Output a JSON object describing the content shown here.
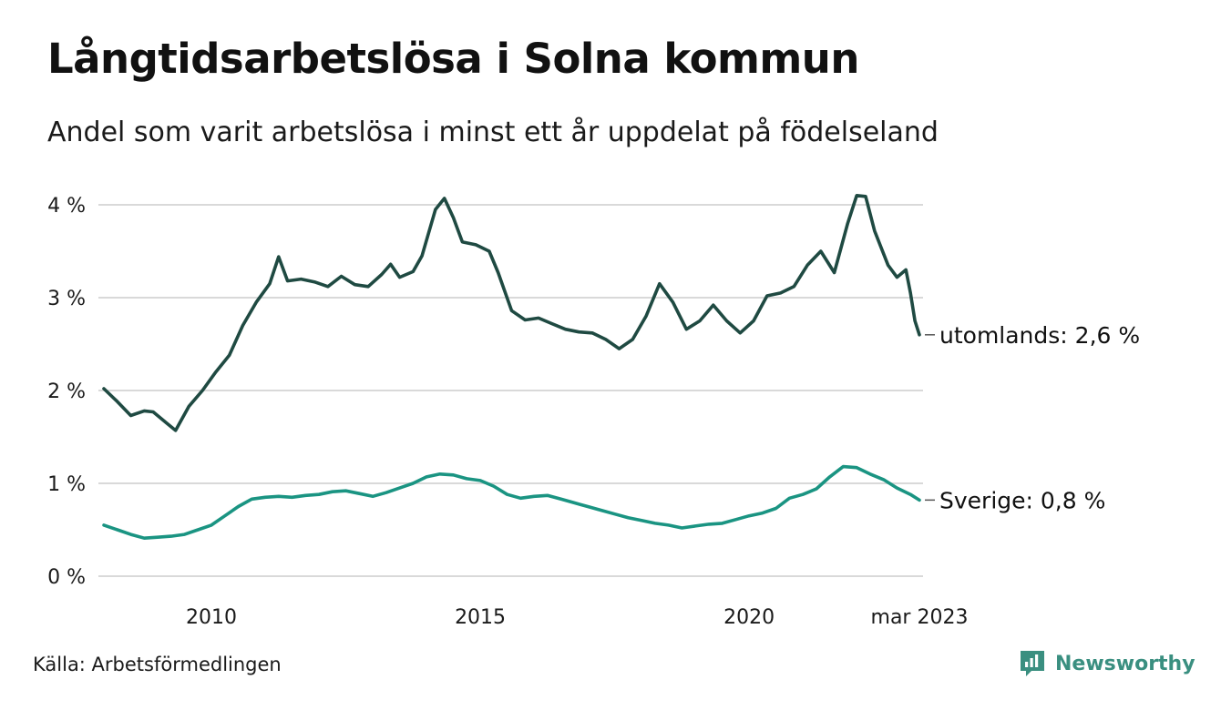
{
  "header": {
    "title": "Långtidsarbetslösa i Solna kommun",
    "subtitle": "Andel som varit arbetslösa i minst ett år uppdelat på födelseland"
  },
  "footer": {
    "source": "Källa: Arbetsförmedlingen",
    "brand": "Newsworthy"
  },
  "colors": {
    "utomlands": "#1f4a42",
    "sverige": "#1a9482",
    "grid": "#d9d9d9",
    "brand": "#3a8f80"
  },
  "chart_data": {
    "type": "line",
    "title": "Långtidsarbetslösa i Solna kommun",
    "subtitle": "Andel som varit arbetslösa i minst ett år uppdelat på födelseland",
    "y_unit": "%",
    "ylim": [
      0,
      4
    ],
    "y_ticks": [
      0,
      1,
      2,
      3,
      4
    ],
    "y_tick_labels": [
      "0 %",
      "1 %",
      "2 %",
      "3 %",
      "4 %"
    ],
    "x_range": [
      "2008-01",
      "2023-03"
    ],
    "x_ticks": [
      "2010-01",
      "2015-01",
      "2020-01",
      "2023-03"
    ],
    "x_tick_labels": [
      "2010",
      "2015",
      "2020",
      "mar 2023"
    ],
    "grid": true,
    "series": [
      {
        "name": "utomlands",
        "end_label": "utomlands: 2,6 %",
        "points": [
          [
            "2008-01",
            2.02
          ],
          [
            "2008-04",
            1.88
          ],
          [
            "2008-07",
            1.73
          ],
          [
            "2008-10",
            1.78
          ],
          [
            "2008-12",
            1.77
          ],
          [
            "2009-03",
            1.65
          ],
          [
            "2009-05",
            1.57
          ],
          [
            "2009-08",
            1.83
          ],
          [
            "2009-11",
            2.0
          ],
          [
            "2010-02",
            2.2
          ],
          [
            "2010-05",
            2.38
          ],
          [
            "2010-08",
            2.7
          ],
          [
            "2010-11",
            2.95
          ],
          [
            "2011-02",
            3.15
          ],
          [
            "2011-04",
            3.44
          ],
          [
            "2011-06",
            3.18
          ],
          [
            "2011-09",
            3.2
          ],
          [
            "2011-12",
            3.17
          ],
          [
            "2012-03",
            3.12
          ],
          [
            "2012-06",
            3.23
          ],
          [
            "2012-09",
            3.14
          ],
          [
            "2012-12",
            3.12
          ],
          [
            "2013-03",
            3.25
          ],
          [
            "2013-05",
            3.36
          ],
          [
            "2013-07",
            3.22
          ],
          [
            "2013-10",
            3.28
          ],
          [
            "2013-12",
            3.45
          ],
          [
            "2014-03",
            3.95
          ],
          [
            "2014-05",
            4.07
          ],
          [
            "2014-07",
            3.86
          ],
          [
            "2014-09",
            3.6
          ],
          [
            "2014-12",
            3.57
          ],
          [
            "2015-03",
            3.5
          ],
          [
            "2015-05",
            3.27
          ],
          [
            "2015-08",
            2.86
          ],
          [
            "2015-11",
            2.76
          ],
          [
            "2016-02",
            2.78
          ],
          [
            "2016-05",
            2.72
          ],
          [
            "2016-08",
            2.66
          ],
          [
            "2016-11",
            2.63
          ],
          [
            "2017-02",
            2.62
          ],
          [
            "2017-05",
            2.55
          ],
          [
            "2017-08",
            2.45
          ],
          [
            "2017-11",
            2.55
          ],
          [
            "2018-02",
            2.8
          ],
          [
            "2018-05",
            3.15
          ],
          [
            "2018-08",
            2.95
          ],
          [
            "2018-11",
            2.66
          ],
          [
            "2019-02",
            2.75
          ],
          [
            "2019-05",
            2.92
          ],
          [
            "2019-08",
            2.75
          ],
          [
            "2019-11",
            2.62
          ],
          [
            "2020-02",
            2.75
          ],
          [
            "2020-05",
            3.02
          ],
          [
            "2020-08",
            3.05
          ],
          [
            "2020-11",
            3.12
          ],
          [
            "2021-02",
            3.35
          ],
          [
            "2021-05",
            3.5
          ],
          [
            "2021-08",
            3.27
          ],
          [
            "2021-11",
            3.8
          ],
          [
            "2022-01",
            4.1
          ],
          [
            "2022-03",
            4.09
          ],
          [
            "2022-05",
            3.72
          ],
          [
            "2022-08",
            3.35
          ],
          [
            "2022-10",
            3.22
          ],
          [
            "2022-12",
            3.3
          ],
          [
            "2023-01",
            3.05
          ],
          [
            "2023-02",
            2.75
          ],
          [
            "2023-03",
            2.6
          ]
        ]
      },
      {
        "name": "Sverige",
        "end_label": "Sverige: 0,8 %",
        "points": [
          [
            "2008-01",
            0.55
          ],
          [
            "2008-04",
            0.5
          ],
          [
            "2008-07",
            0.45
          ],
          [
            "2008-10",
            0.41
          ],
          [
            "2009-01",
            0.42
          ],
          [
            "2009-04",
            0.43
          ],
          [
            "2009-07",
            0.45
          ],
          [
            "2009-10",
            0.5
          ],
          [
            "2010-01",
            0.55
          ],
          [
            "2010-04",
            0.65
          ],
          [
            "2010-07",
            0.75
          ],
          [
            "2010-10",
            0.83
          ],
          [
            "2011-01",
            0.85
          ],
          [
            "2011-04",
            0.86
          ],
          [
            "2011-07",
            0.85
          ],
          [
            "2011-10",
            0.87
          ],
          [
            "2012-01",
            0.88
          ],
          [
            "2012-04",
            0.91
          ],
          [
            "2012-07",
            0.92
          ],
          [
            "2012-10",
            0.89
          ],
          [
            "2013-01",
            0.86
          ],
          [
            "2013-04",
            0.9
          ],
          [
            "2013-07",
            0.95
          ],
          [
            "2013-10",
            1.0
          ],
          [
            "2014-01",
            1.07
          ],
          [
            "2014-04",
            1.1
          ],
          [
            "2014-07",
            1.09
          ],
          [
            "2014-10",
            1.05
          ],
          [
            "2015-01",
            1.03
          ],
          [
            "2015-04",
            0.97
          ],
          [
            "2015-07",
            0.88
          ],
          [
            "2015-10",
            0.84
          ],
          [
            "2016-01",
            0.86
          ],
          [
            "2016-04",
            0.87
          ],
          [
            "2016-07",
            0.83
          ],
          [
            "2016-10",
            0.79
          ],
          [
            "2017-01",
            0.75
          ],
          [
            "2017-04",
            0.71
          ],
          [
            "2017-07",
            0.67
          ],
          [
            "2017-10",
            0.63
          ],
          [
            "2018-01",
            0.6
          ],
          [
            "2018-04",
            0.57
          ],
          [
            "2018-07",
            0.55
          ],
          [
            "2018-10",
            0.52
          ],
          [
            "2019-01",
            0.54
          ],
          [
            "2019-04",
            0.56
          ],
          [
            "2019-07",
            0.57
          ],
          [
            "2019-10",
            0.61
          ],
          [
            "2020-01",
            0.65
          ],
          [
            "2020-04",
            0.68
          ],
          [
            "2020-07",
            0.73
          ],
          [
            "2020-10",
            0.84
          ],
          [
            "2021-01",
            0.88
          ],
          [
            "2021-04",
            0.94
          ],
          [
            "2021-07",
            1.07
          ],
          [
            "2021-10",
            1.18
          ],
          [
            "2022-01",
            1.17
          ],
          [
            "2022-04",
            1.1
          ],
          [
            "2022-07",
            1.04
          ],
          [
            "2022-10",
            0.95
          ],
          [
            "2023-01",
            0.88
          ],
          [
            "2023-03",
            0.82
          ]
        ]
      }
    ]
  }
}
